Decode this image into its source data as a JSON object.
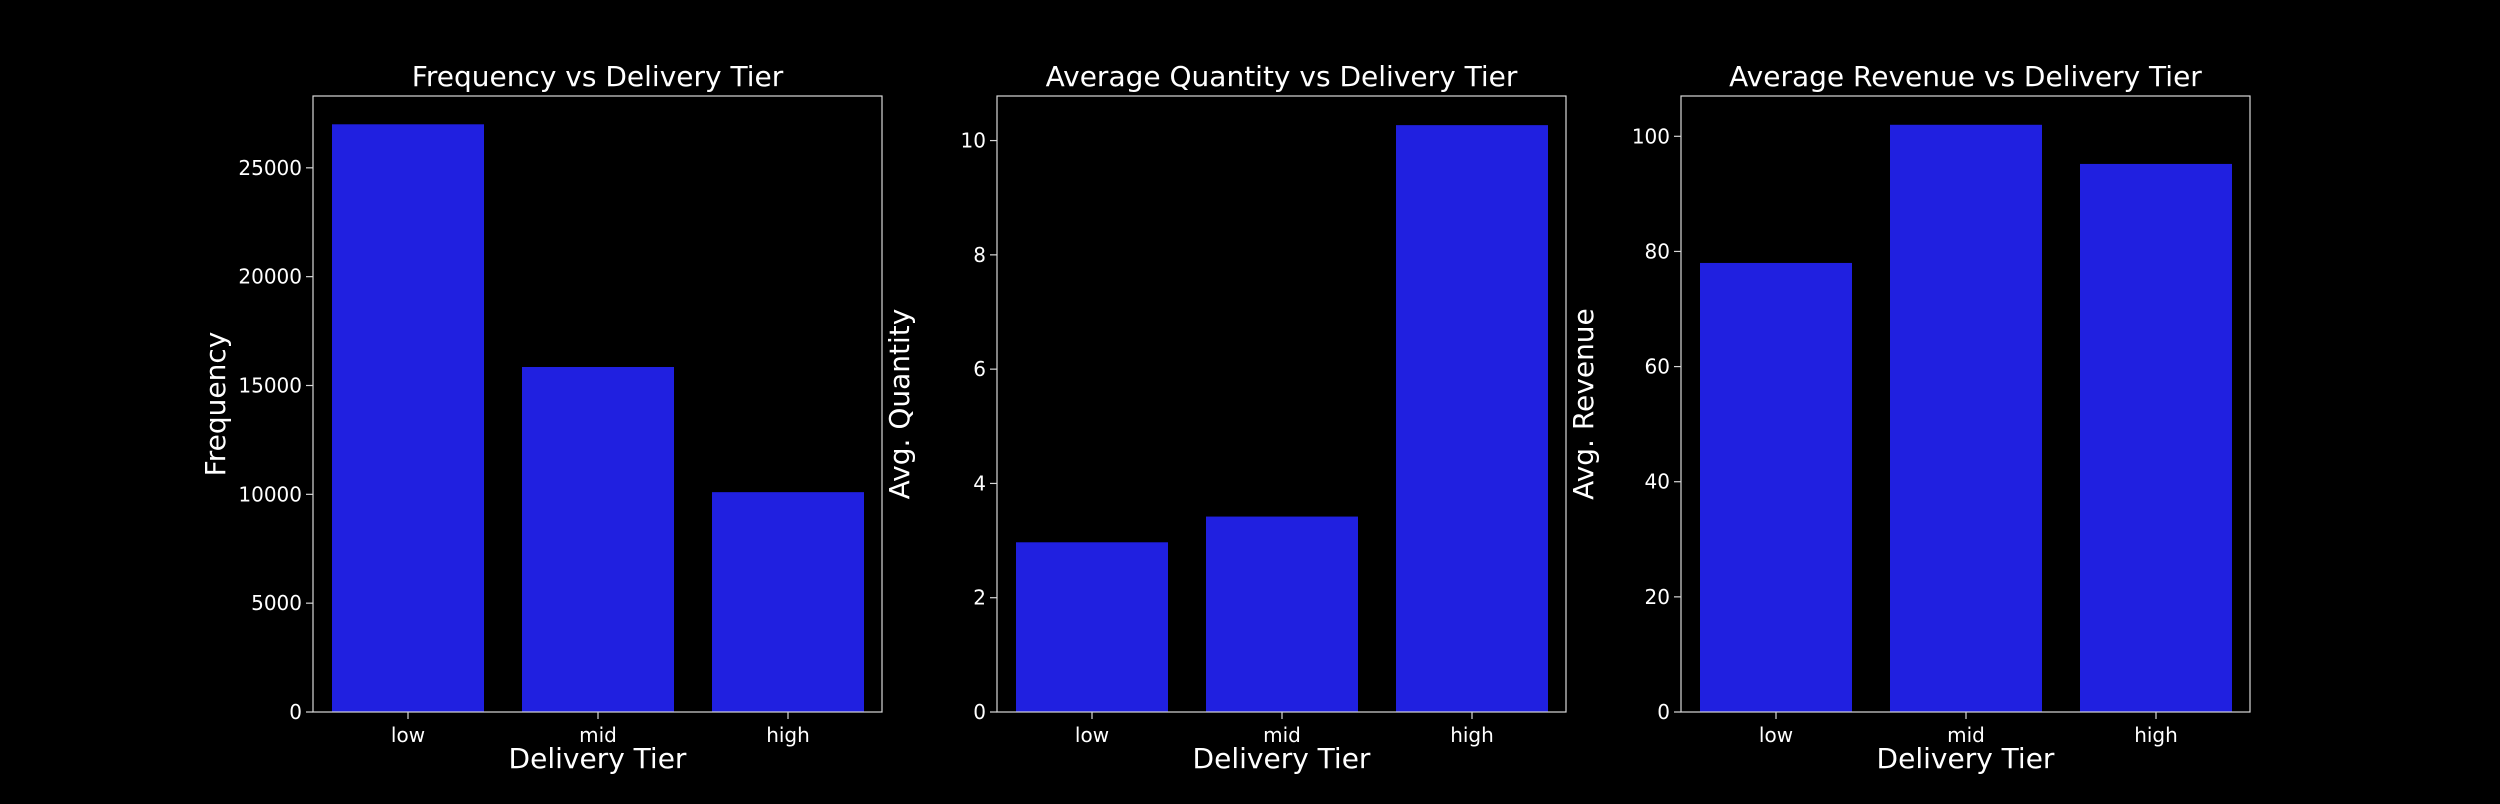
{
  "colors": {
    "background": "#000000",
    "bar": "#2020e0",
    "axis": "#d8d8d8",
    "text": "#ffffff"
  },
  "chart_data": [
    {
      "type": "bar",
      "title": "Frequency vs Delivery Tier",
      "xlabel": "Delivery Tier",
      "ylabel": "Frequency",
      "categories": [
        "low",
        "mid",
        "high"
      ],
      "values": [
        27000,
        15850,
        10100
      ],
      "ylim": [
        0,
        28300
      ],
      "yticks": [
        0,
        5000,
        10000,
        15000,
        20000,
        25000
      ],
      "grid": false
    },
    {
      "type": "bar",
      "title": "Average Quantity vs Delivery Tier",
      "xlabel": "Delivery Tier",
      "ylabel": "Avg. Quantity",
      "categories": [
        "low",
        "mid",
        "high"
      ],
      "values": [
        2.97,
        3.42,
        10.27
      ],
      "ylim": [
        0,
        10.78
      ],
      "yticks": [
        0,
        2,
        4,
        6,
        8,
        10
      ],
      "grid": false
    },
    {
      "type": "bar",
      "title": "Average Revenue vs Delivery Tier",
      "xlabel": "Delivery Tier",
      "ylabel": "Avg. Revenue",
      "categories": [
        "low",
        "mid",
        "high"
      ],
      "values": [
        78,
        102,
        95.2
      ],
      "ylim": [
        0,
        107
      ],
      "yticks": [
        0,
        20,
        40,
        60,
        80,
        100
      ],
      "grid": false
    }
  ]
}
